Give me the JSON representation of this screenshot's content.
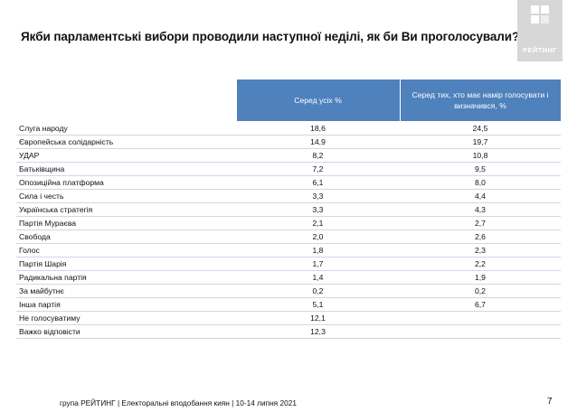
{
  "slide": {
    "title": "Якби парламентські вибори проводили наступної неділі, як би Ви проголосували?",
    "logo_text": "РЕЙТИНГ",
    "footer": "група РЕЙТИНГ | Електоральні вподобання киян |  10-14 липня 2021",
    "page_number": "7",
    "colors": {
      "header_fill": "#4f81bd",
      "logo_fill": "#d7d7d7"
    }
  },
  "table": {
    "columns": [
      "",
      "Серед усіх %",
      "Серед тих, хто має намір голосувати і визначився, %"
    ],
    "rows": [
      {
        "party": "Слуга народу",
        "all": "18,6",
        "decided": "24,5"
      },
      {
        "party": "Європейська солідарність",
        "all": "14,9",
        "decided": "19,7"
      },
      {
        "party": "УДАР",
        "all": "8,2",
        "decided": "10,8"
      },
      {
        "party": "Батьківщина",
        "all": "7,2",
        "decided": "9,5"
      },
      {
        "party": "Опозиційна платформа",
        "all": "6,1",
        "decided": "8,0"
      },
      {
        "party": "Сила і честь",
        "all": "3,3",
        "decided": "4,4"
      },
      {
        "party": "Українська стратегія",
        "all": "3,3",
        "decided": "4,3"
      },
      {
        "party": "Партія Мураєва",
        "all": "2,1",
        "decided": "2,7"
      },
      {
        "party": "Свобода",
        "all": "2,0",
        "decided": "2,6"
      },
      {
        "party": "Голос",
        "all": "1,8",
        "decided": "2,3"
      },
      {
        "party": "Партія Шарія",
        "all": "1,7",
        "decided": "2,2"
      },
      {
        "party": "Радикальна партія",
        "all": "1,4",
        "decided": "1,9"
      },
      {
        "party": "За майбутнє",
        "all": "0,2",
        "decided": "0,2"
      },
      {
        "party": "Інша партія",
        "all": "5,1",
        "decided": "6,7"
      },
      {
        "party": "Не голосуватиму",
        "all": "12,1",
        "decided": ""
      },
      {
        "party": "Важко відповісти",
        "all": "12,3",
        "decided": ""
      }
    ]
  }
}
